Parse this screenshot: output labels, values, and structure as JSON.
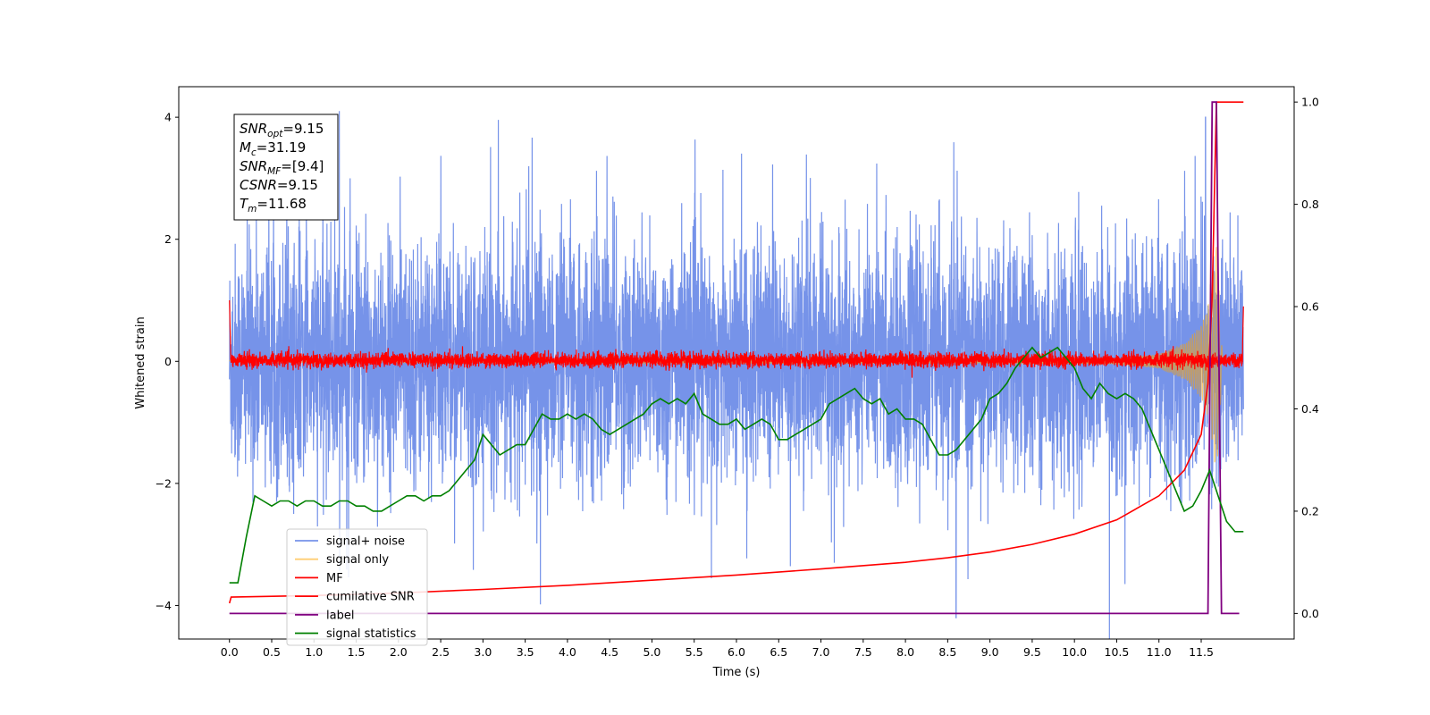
{
  "chart_data": {
    "type": "line",
    "title": "",
    "xlabel": "Time (s)",
    "ylabel": "Whitened strain",
    "xlim": [
      -0.6,
      12.6
    ],
    "ylim": [
      -4.55,
      4.5
    ],
    "y2lim": [
      -0.05,
      1.03
    ],
    "x_ticks": [
      0.0,
      0.5,
      1.0,
      1.5,
      2.0,
      2.5,
      3.0,
      3.5,
      4.0,
      4.5,
      5.0,
      5.5,
      6.0,
      6.5,
      7.0,
      7.5,
      8.0,
      8.5,
      9.0,
      9.5,
      10.0,
      10.5,
      11.0,
      11.5
    ],
    "x_tick_labels": [
      "0.0",
      "0.5",
      "1.0",
      "1.5",
      "2.0",
      "2.5",
      "3.0",
      "3.5",
      "4.0",
      "4.5",
      "5.0",
      "5.5",
      "6.0",
      "6.5",
      "7.0",
      "7.5",
      "8.0",
      "8.5",
      "9.0",
      "9.5",
      "10.0",
      "10.5",
      "11.0",
      "11.5"
    ],
    "y_ticks": [
      -4,
      -2,
      0,
      2,
      4
    ],
    "y_tick_labels": [
      "−4",
      "−2",
      "0",
      "2",
      "4"
    ],
    "y2_ticks": [
      0.0,
      0.2,
      0.4,
      0.6,
      0.8,
      1.0
    ],
    "y2_tick_labels": [
      "0.0",
      "0.2",
      "0.4",
      "0.6",
      "0.8",
      "1.0"
    ],
    "grid": false,
    "legend_position": "lower-left",
    "annotation": [
      {
        "sym": "SNR",
        "sub": "opt",
        "value": "=9.15"
      },
      {
        "sym": "M",
        "sub": "c",
        "value": "=31.19"
      },
      {
        "sym": "SNR",
        "sub": "MF",
        "value": "=[9.4]"
      },
      {
        "sym": "CSNR",
        "sub": "",
        "value": "=9.15"
      },
      {
        "sym": "T",
        "sub": "m",
        "value": "=11.68"
      }
    ],
    "series": [
      {
        "name": "signal+ noise",
        "color": "#4169e1",
        "axis": "left",
        "note": "white noise amplitude ~1, spikes to ±4, x 0.0–12.0"
      },
      {
        "name": "signal only",
        "color": "#ffa500",
        "axis": "left",
        "x": [
          0.0,
          10.5,
          11.0,
          11.3,
          11.5,
          11.6,
          11.68,
          11.75
        ],
        "envelope": [
          0.02,
          0.05,
          0.12,
          0.3,
          0.6,
          1.0,
          2.0,
          0.1
        ]
      },
      {
        "name": "MF",
        "color": "#ff0000",
        "axis": "left",
        "note": "noise about 0 with amplitude ~0.12, x 0.0–12.0"
      },
      {
        "name": "cumilative SNR",
        "color": "#ff0000",
        "axis": "right",
        "x": [
          0.0,
          0.02,
          1.0,
          2.0,
          3.0,
          4.0,
          5.0,
          6.0,
          7.0,
          8.0,
          8.5,
          9.0,
          9.5,
          10.0,
          10.5,
          11.0,
          11.3,
          11.5,
          11.58,
          11.63,
          11.66,
          11.68,
          11.75,
          11.85,
          12.0
        ],
        "values": [
          0.02,
          0.032,
          0.035,
          0.04,
          0.047,
          0.055,
          0.065,
          0.075,
          0.087,
          0.1,
          0.109,
          0.12,
          0.135,
          0.155,
          0.183,
          0.23,
          0.28,
          0.35,
          0.45,
          0.62,
          0.85,
          1.0,
          1.0,
          1.0,
          1.0
        ]
      },
      {
        "name": "label",
        "color": "#800080",
        "axis": "right",
        "x": [
          0.0,
          11.58,
          11.63,
          11.68,
          11.74,
          11.78,
          11.95
        ],
        "values": [
          0.0,
          0.0,
          1.0,
          1.0,
          0.0,
          0.0,
          0.0
        ]
      },
      {
        "name": "signal statistics",
        "color": "#008000",
        "axis": "right",
        "x": [
          0.0,
          0.1,
          0.2,
          0.3,
          0.4,
          0.5,
          0.6,
          0.7,
          0.8,
          0.9,
          1.0,
          1.1,
          1.2,
          1.3,
          1.4,
          1.5,
          1.6,
          1.7,
          1.8,
          1.9,
          2.0,
          2.1,
          2.2,
          2.3,
          2.4,
          2.5,
          2.6,
          2.7,
          2.8,
          2.9,
          3.0,
          3.1,
          3.2,
          3.3,
          3.4,
          3.5,
          3.6,
          3.7,
          3.8,
          3.9,
          4.0,
          4.1,
          4.2,
          4.3,
          4.4,
          4.5,
          4.6,
          4.7,
          4.8,
          4.9,
          5.0,
          5.1,
          5.2,
          5.3,
          5.4,
          5.5,
          5.6,
          5.7,
          5.8,
          5.9,
          6.0,
          6.1,
          6.2,
          6.3,
          6.4,
          6.5,
          6.6,
          6.7,
          6.8,
          6.9,
          7.0,
          7.1,
          7.2,
          7.3,
          7.4,
          7.5,
          7.6,
          7.7,
          7.8,
          7.9,
          8.0,
          8.1,
          8.2,
          8.3,
          8.4,
          8.5,
          8.6,
          8.7,
          8.8,
          8.9,
          9.0,
          9.1,
          9.2,
          9.3,
          9.4,
          9.5,
          9.6,
          9.7,
          9.8,
          9.9,
          10.0,
          10.1,
          10.2,
          10.3,
          10.4,
          10.5,
          10.6,
          10.7,
          10.8,
          10.9,
          11.0,
          11.1,
          11.2,
          11.3,
          11.4,
          11.5,
          11.6,
          11.7,
          11.8,
          11.9,
          12.0
        ],
        "values": [
          0.06,
          0.06,
          0.15,
          0.23,
          0.22,
          0.21,
          0.22,
          0.22,
          0.21,
          0.22,
          0.22,
          0.21,
          0.21,
          0.22,
          0.22,
          0.21,
          0.21,
          0.2,
          0.2,
          0.21,
          0.22,
          0.23,
          0.23,
          0.22,
          0.23,
          0.23,
          0.24,
          0.26,
          0.28,
          0.3,
          0.35,
          0.33,
          0.31,
          0.32,
          0.33,
          0.33,
          0.36,
          0.39,
          0.38,
          0.38,
          0.39,
          0.38,
          0.39,
          0.38,
          0.36,
          0.35,
          0.36,
          0.37,
          0.38,
          0.39,
          0.41,
          0.42,
          0.41,
          0.42,
          0.41,
          0.43,
          0.39,
          0.38,
          0.37,
          0.37,
          0.38,
          0.36,
          0.37,
          0.38,
          0.37,
          0.34,
          0.34,
          0.35,
          0.36,
          0.37,
          0.38,
          0.41,
          0.42,
          0.43,
          0.44,
          0.42,
          0.41,
          0.42,
          0.39,
          0.4,
          0.38,
          0.38,
          0.37,
          0.34,
          0.31,
          0.31,
          0.32,
          0.34,
          0.36,
          0.38,
          0.42,
          0.43,
          0.45,
          0.48,
          0.5,
          0.52,
          0.5,
          0.51,
          0.52,
          0.5,
          0.48,
          0.44,
          0.42,
          0.45,
          0.43,
          0.42,
          0.43,
          0.42,
          0.4,
          0.36,
          0.32,
          0.28,
          0.24,
          0.2,
          0.21,
          0.24,
          0.28,
          0.23,
          0.18,
          0.16,
          0.16
        ]
      }
    ]
  }
}
